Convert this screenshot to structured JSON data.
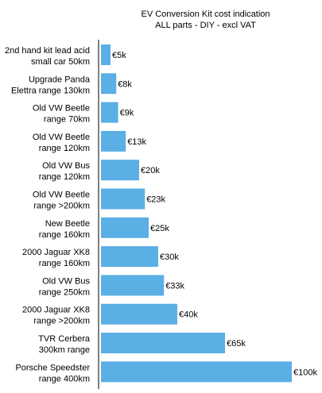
{
  "chart_data": {
    "type": "bar",
    "orientation": "horizontal",
    "title_lines": [
      "EV Conversion Kit cost indication",
      "ALL parts - DIY - excl VAT"
    ],
    "categories": [
      [
        "2nd hand kit lead acid",
        "small car 50km"
      ],
      [
        "Upgrade Panda",
        "Elettra range 130km"
      ],
      [
        "Old VW Beetle",
        "range 70km"
      ],
      [
        "Old VW Beetle",
        "range 120km"
      ],
      [
        "Old VW Bus",
        "range 120km"
      ],
      [
        "Old VW Beetle",
        "range >200km"
      ],
      [
        "New Beetle",
        "range 160km"
      ],
      [
        "2000 Jaguar XK8",
        "range 160km"
      ],
      [
        "Old VW Bus",
        "range 250km"
      ],
      [
        "2000 Jaguar XK8",
        "range >200km"
      ],
      [
        "TVR Cerbera",
        "300km range"
      ],
      [
        "Porsche Speedster",
        "range 400km"
      ]
    ],
    "values": [
      5,
      8,
      9,
      13,
      20,
      23,
      25,
      30,
      33,
      40,
      65,
      100
    ],
    "value_labels": [
      "€5k",
      "€8k",
      "€9k",
      "€13k",
      "€20k",
      "€23k",
      "€25k",
      "€30k",
      "€33k",
      "€40k",
      "€65k",
      "€100k"
    ],
    "xlim": [
      0,
      100
    ],
    "bar_color": "#5aafe4",
    "axis_color": "#000000"
  }
}
